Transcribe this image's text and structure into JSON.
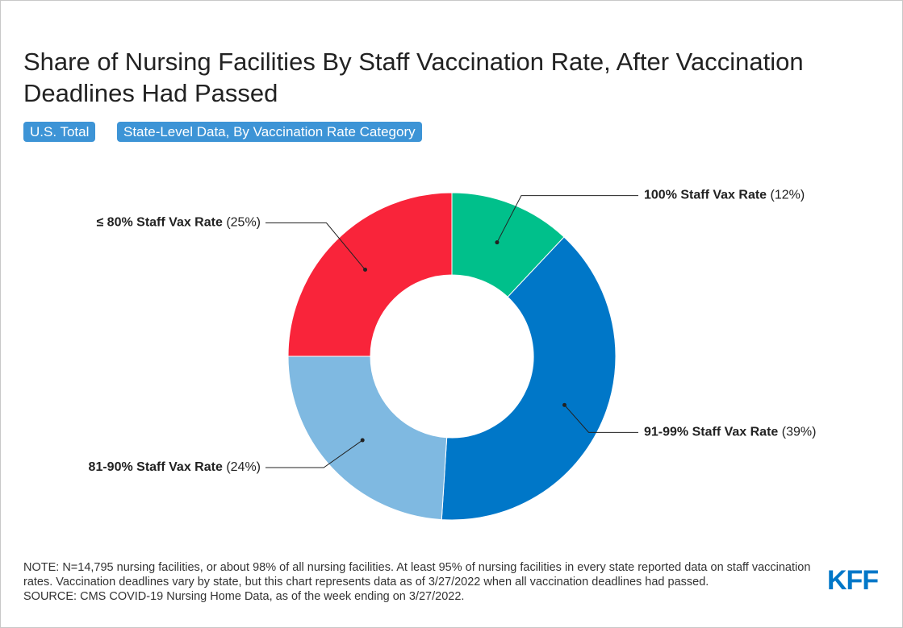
{
  "chart_data": {
    "type": "donut",
    "title": "Share of Nursing Facilities By Staff Vaccination Rate, After Vaccination Deadlines Had Passed",
    "categories": [
      "100% Staff Vax Rate",
      "91-99% Staff Vax Rate",
      "81-90% Staff Vax Rate",
      "≤ 80% Staff Vax Rate"
    ],
    "values": [
      12,
      39,
      24,
      25
    ],
    "value_labels": [
      "(12%)",
      "(39%)",
      "(24%)",
      "(25%)"
    ],
    "colors": [
      "#00c08b",
      "#0077c8",
      "#7fb9e1",
      "#f9243a"
    ]
  },
  "tabs": [
    "U.S. Total",
    "State-Level Data, By Vaccination Rate Category"
  ],
  "note": "NOTE: N=14,795 nursing facilities, or about 98% of all nursing facilities. At least 95% of nursing facilities in every state reported data on staff vaccination rates. Vaccination deadlines vary by state, but this chart represents data as of 3/27/2022 when all vaccination deadlines had passed.",
  "source": "SOURCE: CMS COVID-19 Nursing Home Data, as of the week ending on 3/27/2022.",
  "logo": "KFF"
}
